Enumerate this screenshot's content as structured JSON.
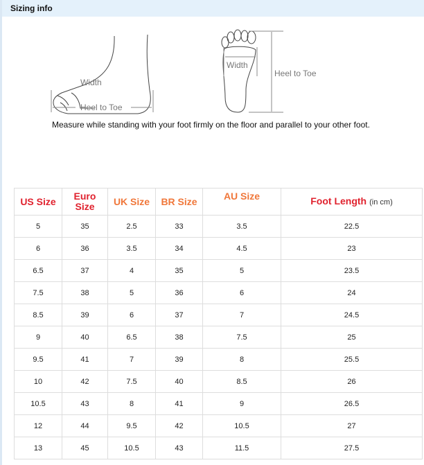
{
  "header": {
    "title": "Sizing info"
  },
  "illustration": {
    "side_width": "Width",
    "side_length": "Heel to Toe",
    "sole_width": "Width",
    "sole_length": "Heel to Toe"
  },
  "note": "Measure while standing with your foot firmly on the floor and parallel to your other foot.",
  "colors": {
    "red": "#e0222e",
    "orange": "#f0773a",
    "header_bg": "#e4f1fb"
  },
  "table": {
    "headers": [
      {
        "label": "US Size",
        "color": "red"
      },
      {
        "label": "Euro Size",
        "color": "red"
      },
      {
        "label": "UK Size",
        "color": "orange"
      },
      {
        "label": "BR Size",
        "color": "orange"
      },
      {
        "label": "AU Size",
        "color": "orange"
      },
      {
        "label": "Foot Length",
        "unit": "(in cm)",
        "color": "red"
      }
    ],
    "rows": [
      [
        "5",
        "35",
        "2.5",
        "33",
        "3.5",
        "22.5"
      ],
      [
        "6",
        "36",
        "3.5",
        "34",
        "4.5",
        "23"
      ],
      [
        "6.5",
        "37",
        "4",
        "35",
        "5",
        "23.5"
      ],
      [
        "7.5",
        "38",
        "5",
        "36",
        "6",
        "24"
      ],
      [
        "8.5",
        "39",
        "6",
        "37",
        "7",
        "24.5"
      ],
      [
        "9",
        "40",
        "6.5",
        "38",
        "7.5",
        "25"
      ],
      [
        "9.5",
        "41",
        "7",
        "39",
        "8",
        "25.5"
      ],
      [
        "10",
        "42",
        "7.5",
        "40",
        "8.5",
        "26"
      ],
      [
        "10.5",
        "43",
        "8",
        "41",
        "9",
        "26.5"
      ],
      [
        "12",
        "44",
        "9.5",
        "42",
        "10.5",
        "27"
      ],
      [
        "13",
        "45",
        "10.5",
        "43",
        "11.5",
        "27.5"
      ]
    ]
  }
}
